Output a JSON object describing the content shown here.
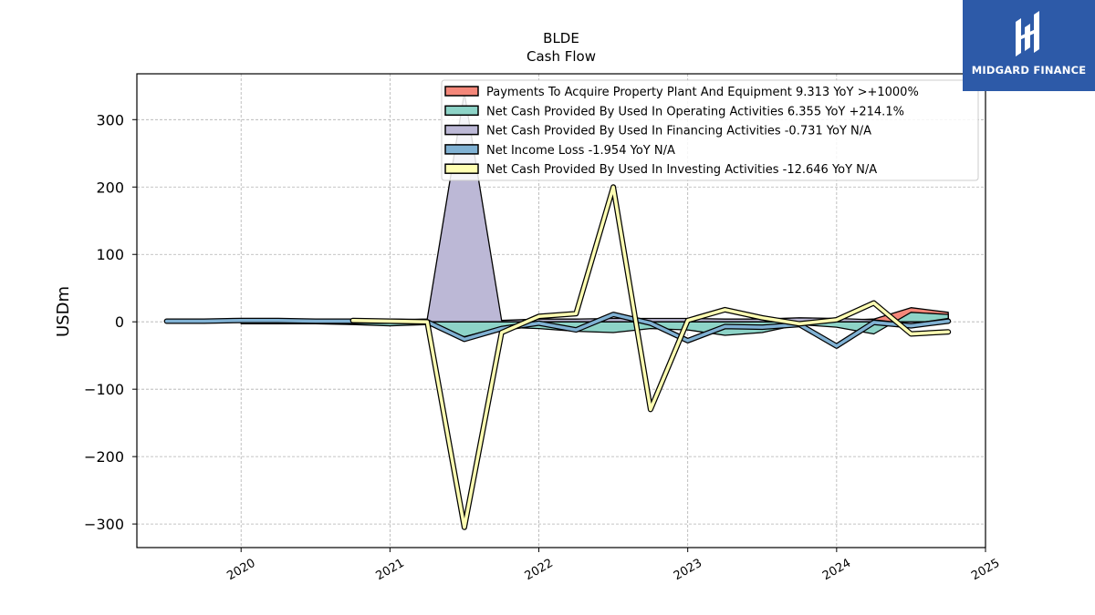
{
  "chart_data": {
    "type": "line",
    "title": "BLDE",
    "subtitle": "Cash Flow",
    "ylabel": "USDm",
    "xlabel": "",
    "ylim": [
      -335,
      368
    ],
    "xlim": [
      2019.3,
      2025.0
    ],
    "yticks": [
      -300,
      -200,
      -100,
      0,
      100,
      200,
      300
    ],
    "ytick_labels": [
      "−300",
      "−200",
      "−100",
      "0",
      "100",
      "200",
      "300"
    ],
    "xticks": [
      2020,
      2021,
      2022,
      2023,
      2024,
      2025
    ],
    "xtick_labels": [
      "2020",
      "2021",
      "2022",
      "2023",
      "2024",
      "2025"
    ],
    "grid": true,
    "legend_position": "top-right",
    "series": [
      {
        "name": "Payments To Acquire Property Plant And Equipment",
        "legend": "Payments To Acquire Property Plant And Equipment  9.313 YoY >+1000%",
        "color": "#f4877a",
        "style": "area",
        "x": [
          2020.0,
          2020.25,
          2020.5,
          2020.75,
          2021.0,
          2021.25,
          2021.5,
          2021.75,
          2022.0,
          2022.25,
          2022.5,
          2022.75,
          2023.0,
          2023.25,
          2023.5,
          2023.75,
          2024.0,
          2024.25,
          2024.5,
          2024.75
        ],
        "y": [
          0,
          0,
          0,
          0,
          0,
          1,
          -2,
          1,
          2,
          1,
          1,
          1,
          1,
          2,
          2,
          1,
          2,
          4,
          21,
          14
        ]
      },
      {
        "name": "Net Cash Provided By Used In Operating Activities",
        "legend": "Net Cash Provided By Used In Operating Activities  6.355 YoY +214.1%",
        "color": "#8dd3c7",
        "style": "area",
        "x": [
          2020.0,
          2020.25,
          2020.5,
          2020.75,
          2021.0,
          2021.25,
          2021.5,
          2021.75,
          2022.0,
          2022.25,
          2022.5,
          2022.75,
          2023.0,
          2023.25,
          2023.5,
          2023.75,
          2024.0,
          2024.25,
          2024.5,
          2024.75
        ],
        "y": [
          -3,
          -3,
          -3,
          -4,
          -6,
          -4,
          -22,
          -8,
          -10,
          -14,
          -16,
          -10,
          -12,
          -20,
          -16,
          -4,
          -8,
          -18,
          14,
          11
        ]
      },
      {
        "name": "Net Cash Provided By Used In Financing Activities",
        "legend": "Net Cash Provided By Used In Financing Activities  -0.731 YoY N/A",
        "color": "#bcb8d6",
        "style": "area",
        "x": [
          2021.0,
          2021.25,
          2021.5,
          2021.75,
          2022.0,
          2022.25,
          2022.5,
          2022.75,
          2023.0,
          2023.25,
          2023.5,
          2023.75,
          2024.0,
          2024.25,
          2024.5,
          2024.75
        ],
        "y": [
          3,
          4,
          340,
          2,
          4,
          4,
          5,
          5,
          5,
          4,
          4,
          6,
          5,
          3,
          -3,
          5
        ]
      },
      {
        "name": "Net Income Loss",
        "legend": "Net Income Loss  -1.954 YoY N/A",
        "color": "#80b1d3",
        "style": "line",
        "x": [
          2019.5,
          2019.75,
          2020.0,
          2020.25,
          2020.5,
          2020.75,
          2021.0,
          2021.25,
          2021.5,
          2021.75,
          2022.0,
          2022.25,
          2022.5,
          2022.75,
          2023.0,
          2023.25,
          2023.5,
          2023.75,
          2024.0,
          2024.25,
          2024.5,
          2024.75
        ],
        "y": [
          1,
          1,
          2,
          2,
          1,
          1,
          1,
          0,
          -26,
          -10,
          -2,
          -12,
          11,
          -2,
          -28,
          -7,
          -8,
          -4,
          -36,
          -1,
          -6,
          1
        ]
      },
      {
        "name": "Net Cash Provided By Used In Investing Activities",
        "legend": "Net Cash Provided By Used In Investing Activities  -12.646 YoY N/A",
        "color": "#ffffb3",
        "style": "line",
        "x": [
          2020.75,
          2021.0,
          2021.25,
          2021.5,
          2021.75,
          2022.0,
          2022.25,
          2022.5,
          2022.75,
          2023.0,
          2023.25,
          2023.5,
          2023.75,
          2024.0,
          2024.25,
          2024.5,
          2024.75
        ],
        "y": [
          2,
          1,
          0,
          -305,
          -16,
          8,
          12,
          200,
          -130,
          2,
          18,
          6,
          -3,
          3,
          28,
          -18,
          -15
        ]
      }
    ]
  },
  "logo": {
    "text": "MIDGARD FINANCE",
    "background": "#2d5aa8"
  }
}
